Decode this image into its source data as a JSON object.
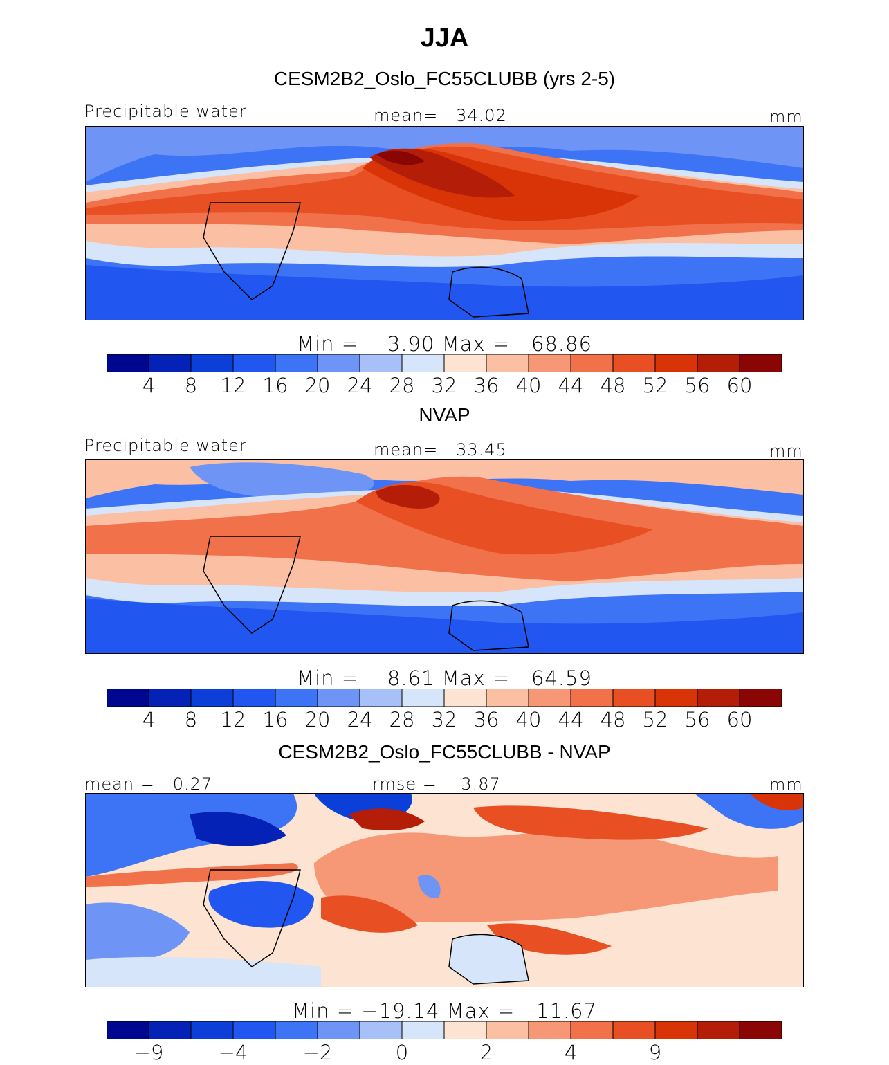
{
  "title": "JJA",
  "colors": {
    "precip_scale": [
      "#00078f",
      "#0423b6",
      "#0c3fd8",
      "#2156f0",
      "#3d73f5",
      "#6e95f6",
      "#a8c0f8",
      "#d7e5fa",
      "#fde4d2",
      "#fbc0a4",
      "#f69876",
      "#f1714b",
      "#e84f23",
      "#d93408",
      "#b41d08",
      "#8a0604"
    ],
    "diff_scale": [
      "#00078f",
      "#0423b6",
      "#0c3fd8",
      "#2156f0",
      "#3d73f5",
      "#6e95f6",
      "#a8c0f8",
      "#d7e5fa",
      "#fde4d2",
      "#fbc0a4",
      "#f69876",
      "#f1714b",
      "#e84f23",
      "#d93408",
      "#b41d08",
      "#8a0604"
    ]
  },
  "chart_data": [
    {
      "type": "heatmap",
      "title": "CESM2B2_Oslo_FC55CLUBB (yrs 2-5)",
      "variable": "Precipitable water",
      "units": "mm",
      "mean_label": "mean=",
      "mean": "34.02",
      "min_label": "Min =",
      "min": "3.90",
      "max_label": "Max =",
      "max": "68.86",
      "colorbar_levels": [
        "4",
        "8",
        "12",
        "16",
        "20",
        "24",
        "28",
        "32",
        "36",
        "40",
        "44",
        "48",
        "52",
        "56",
        "60"
      ]
    },
    {
      "type": "heatmap",
      "title": "NVAP",
      "variable": "Precipitable water",
      "units": "mm",
      "mean_label": "mean=",
      "mean": "33.45",
      "min_label": "Min =",
      "min": "8.61",
      "max_label": "Max =",
      "max": "64.59",
      "colorbar_levels": [
        "4",
        "8",
        "12",
        "16",
        "20",
        "24",
        "28",
        "32",
        "36",
        "40",
        "44",
        "48",
        "52",
        "56",
        "60"
      ]
    },
    {
      "type": "heatmap",
      "title": "CESM2B2_Oslo_FC55CLUBB - NVAP",
      "units": "mm",
      "mean_label": "mean =",
      "mean": "0.27",
      "rmse_label": "rmse =",
      "rmse": "3.87",
      "min_label": "Min =",
      "min": "−19.14",
      "max_label": "Max =",
      "max": "11.67",
      "colorbar_levels": [
        "−9",
        "",
        "−4",
        "",
        "−2",
        "",
        "0",
        "",
        "2",
        "",
        "4",
        "",
        "9"
      ]
    }
  ]
}
